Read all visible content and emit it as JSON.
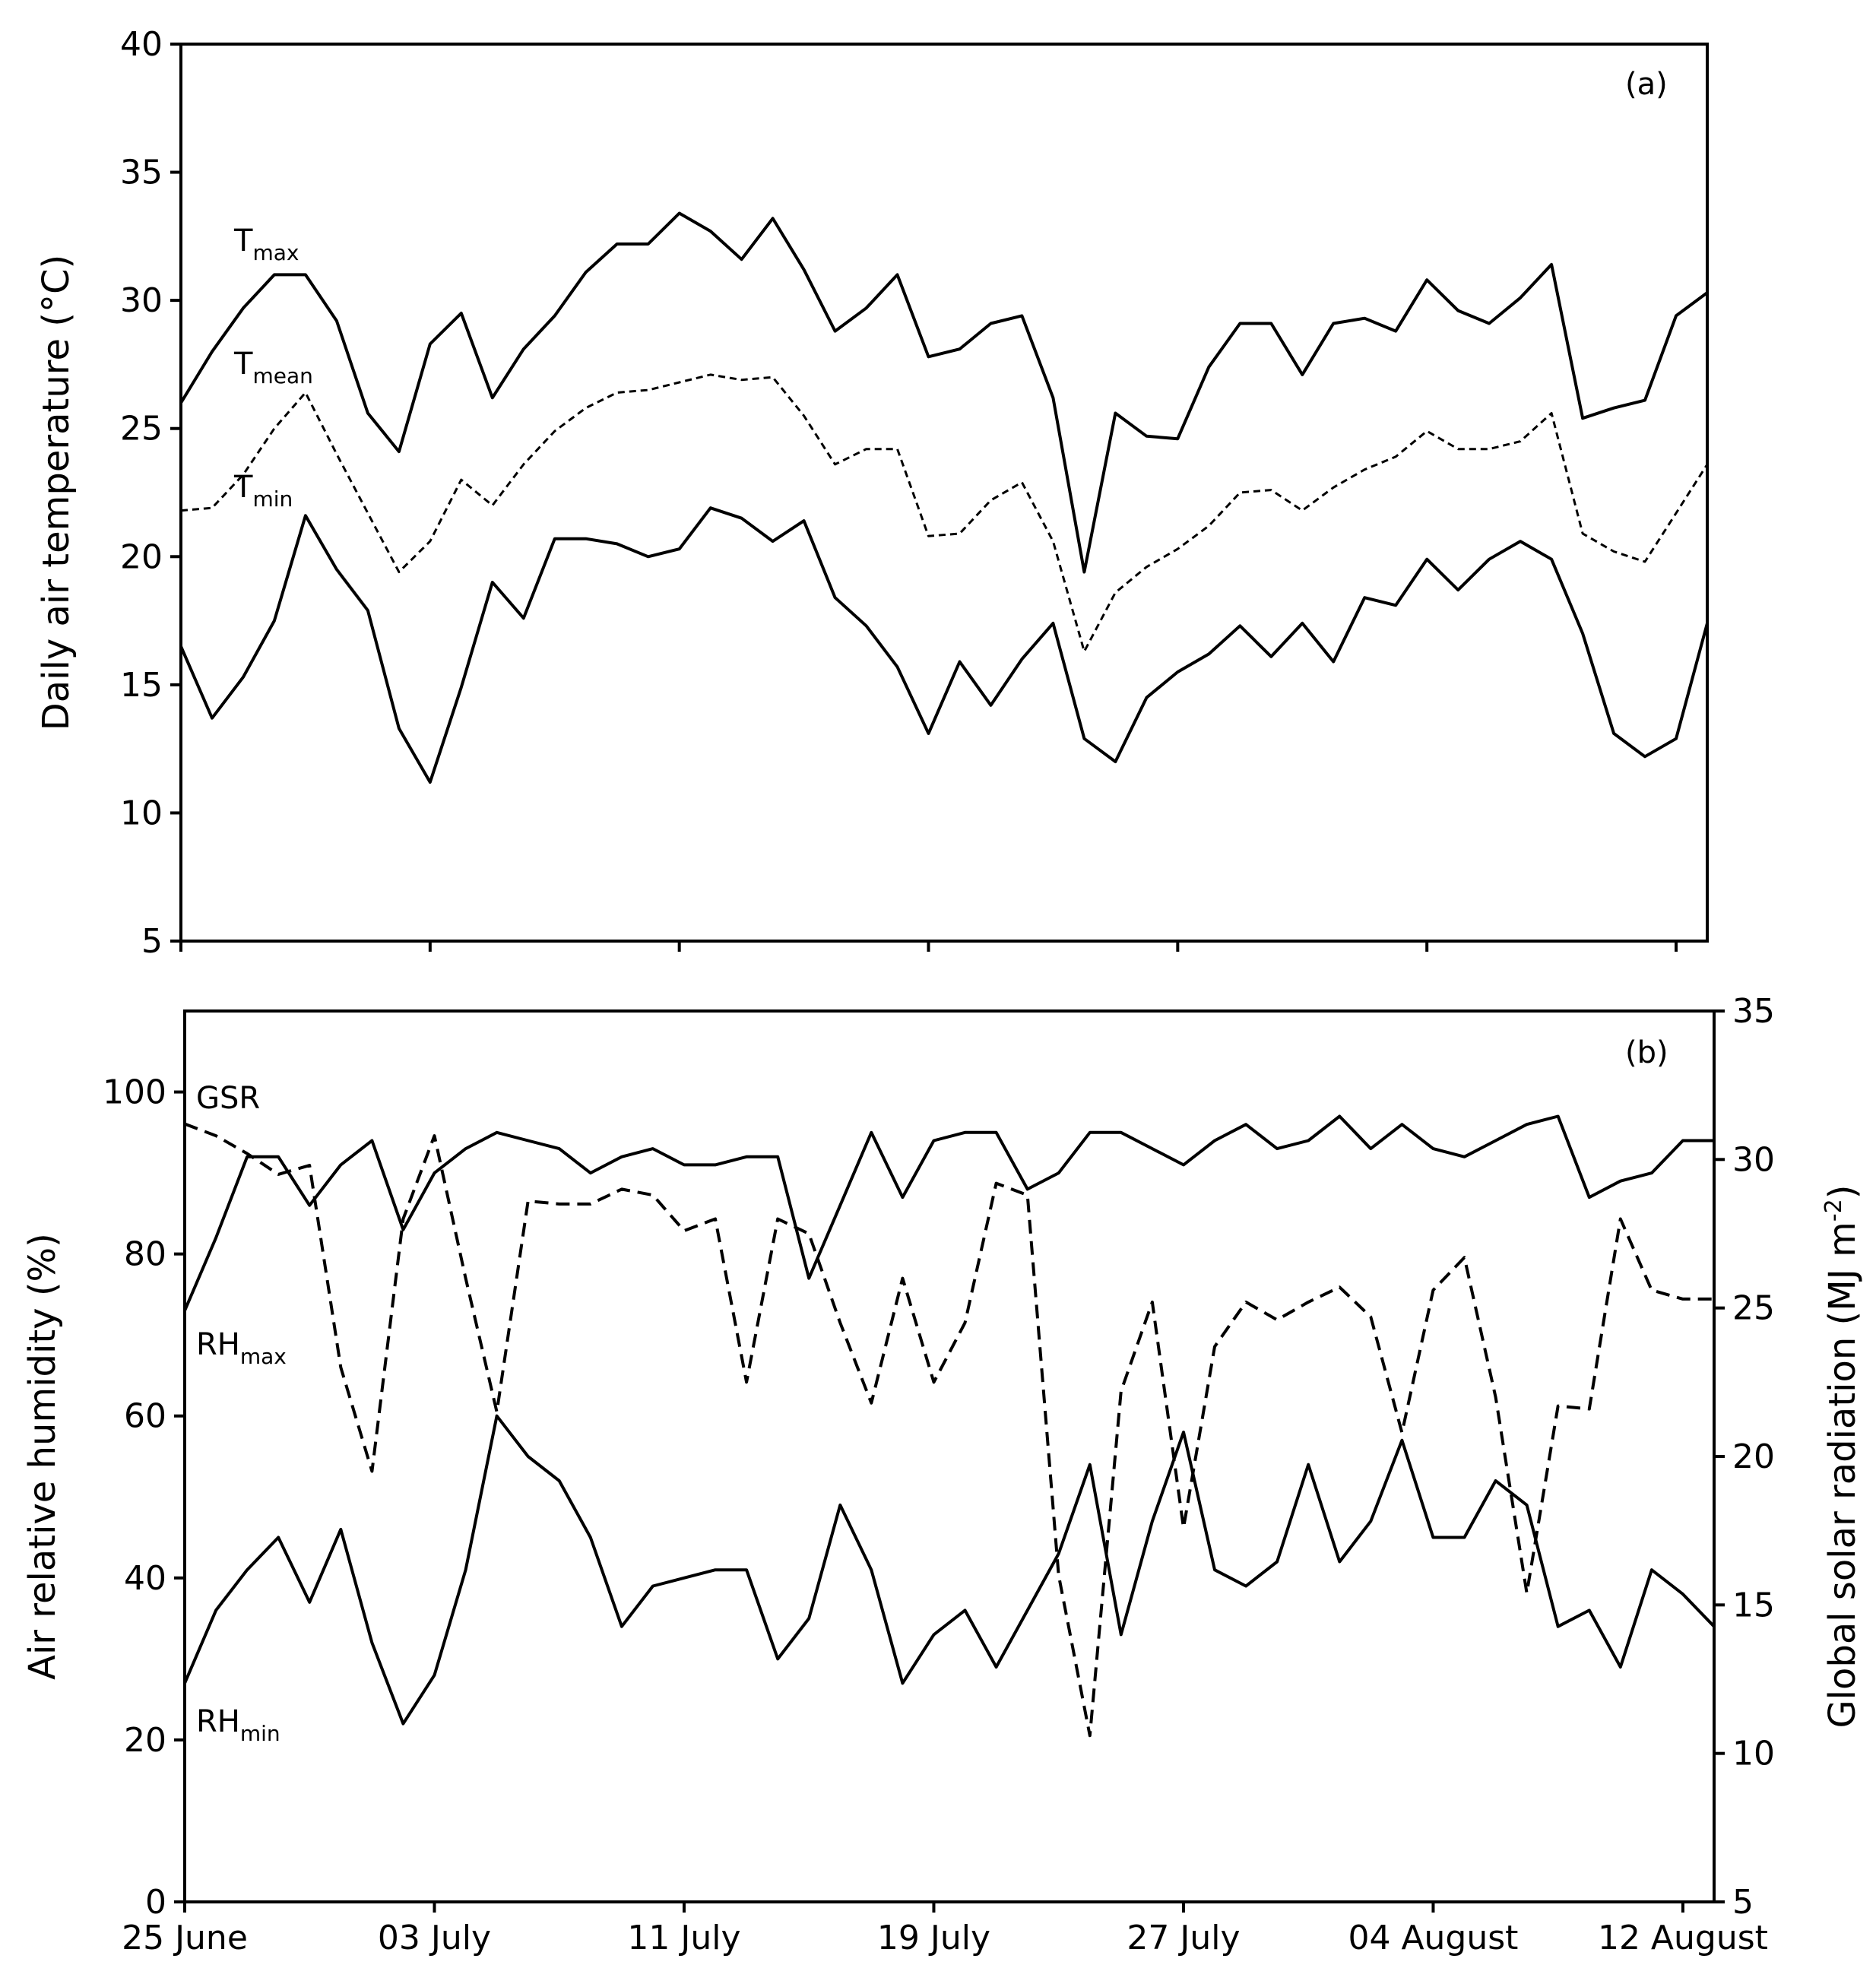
{
  "chart_data": [
    {
      "panel": "(a)",
      "type": "line",
      "ylabel": "Daily air temperature (°C)",
      "ylim": [
        5,
        40
      ],
      "yticks": [
        5,
        10,
        15,
        20,
        25,
        30,
        35,
        40
      ],
      "x_start": "25 June",
      "series": [
        {
          "name": "Tmax",
          "label_main": "T",
          "label_sub": "max",
          "style": "solid",
          "values": [
            26,
            28,
            29.7,
            31,
            31,
            29.2,
            25.6,
            24.1,
            28.3,
            29.5,
            26.2,
            28.1,
            29.4,
            31.1,
            32.2,
            32.2,
            33.4,
            32.7,
            31.6,
            33.2,
            31.2,
            28.8,
            29.7,
            31,
            27.8,
            28.1,
            29.1,
            29.4,
            26.2,
            19.4,
            25.6,
            24.7,
            24.6,
            27.4,
            29.1,
            29.1,
            27.1,
            29.1,
            29.3,
            28.8,
            30.8,
            29.6,
            29.1,
            30.1,
            31.4,
            25.4,
            25.8,
            26.1,
            29.4,
            30.3
          ]
        },
        {
          "name": "Tmean",
          "label_main": "T",
          "label_sub": "mean",
          "style": "dotted",
          "values": [
            21.8,
            21.9,
            23.2,
            25,
            26.4,
            24,
            21.7,
            19.4,
            20.6,
            23,
            22,
            23.6,
            24.9,
            25.8,
            26.4,
            26.5,
            26.8,
            27.1,
            26.9,
            27,
            25.5,
            23.6,
            24.2,
            24.2,
            20.8,
            20.9,
            22.2,
            22.9,
            20.6,
            16.3,
            18.6,
            19.6,
            20.3,
            21.2,
            22.5,
            22.6,
            21.8,
            22.7,
            23.4,
            23.9,
            24.9,
            24.2,
            24.2,
            24.5,
            25.6,
            20.9,
            20.2,
            19.8,
            21.7,
            23.6
          ]
        },
        {
          "name": "Tmin",
          "label_main": "T",
          "label_sub": "min",
          "style": "solid",
          "values": [
            16.5,
            13.7,
            15.3,
            17.5,
            21.6,
            19.5,
            17.9,
            13.3,
            11.2,
            14.9,
            19,
            17.6,
            20.7,
            20.7,
            20.5,
            20,
            20.3,
            21.9,
            21.5,
            20.6,
            21.4,
            18.4,
            17.3,
            15.7,
            13.1,
            15.9,
            14.2,
            16,
            17.4,
            12.9,
            12,
            14.5,
            15.5,
            16.2,
            17.3,
            16.1,
            17.4,
            15.9,
            18.4,
            18.1,
            19.9,
            18.7,
            19.9,
            20.6,
            19.9,
            17,
            13.1,
            12.2,
            12.9,
            17.4
          ]
        }
      ]
    },
    {
      "panel": "(b)",
      "type": "line",
      "ylabel": "Air relative humidity (%)",
      "ylabel_right": "Global solar radiation (MJ m",
      "ylabel_right_sup": "-2",
      "ylabel_right_end": ")",
      "ylim": [
        0,
        110
      ],
      "yticks": [
        0,
        20,
        40,
        60,
        80,
        100
      ],
      "ylim_right": [
        5,
        35
      ],
      "yticks_right": [
        5,
        10,
        15,
        20,
        25,
        30,
        35
      ],
      "xticks": [
        "25 June",
        "03 July",
        "11 July",
        "19 July",
        "27 July",
        "04 August",
        "12 August"
      ],
      "xtick_days": [
        0,
        8,
        16,
        24,
        32,
        40,
        48
      ],
      "series": [
        {
          "name": "GSR",
          "label_main": "GSR",
          "label_sub": "",
          "axis": "right",
          "style": "dashed",
          "values": [
            31.2,
            30.8,
            30.2,
            29.5,
            29.8,
            23,
            19.5,
            28,
            30.8,
            26,
            21.5,
            28.6,
            28.5,
            28.5,
            29,
            28.8,
            27.6,
            28,
            22.5,
            28,
            27.5,
            24.5,
            21.8,
            26,
            22.5,
            24.5,
            29.2,
            28.8,
            16,
            10.6,
            22.2,
            25.2,
            17.6,
            23.7,
            25.2,
            24.6,
            25.2,
            25.7,
            24.7,
            20.8,
            25.6,
            26.7,
            22,
            15.4,
            21.7,
            21.6,
            28,
            25.6,
            25.3,
            25.3
          ]
        },
        {
          "name": "RHmax",
          "label_main": "RH",
          "label_sub": "max",
          "style": "solid",
          "values": [
            73,
            82,
            92,
            92,
            86,
            91,
            94,
            83,
            90,
            93,
            95,
            94,
            93,
            90,
            92,
            93,
            91,
            91,
            92,
            92,
            77,
            86,
            95,
            87,
            94,
            95,
            95,
            88,
            90,
            95,
            95,
            93,
            91,
            94,
            96,
            93,
            94,
            97,
            93,
            96,
            93,
            92,
            94,
            96,
            97,
            87,
            89,
            90,
            94,
            94
          ]
        },
        {
          "name": "RHmin",
          "label_main": "RH",
          "label_sub": "min",
          "style": "solid",
          "values": [
            27,
            36,
            41,
            45,
            37,
            46,
            32,
            22,
            28,
            41,
            60,
            55,
            52,
            45,
            34,
            39,
            40,
            41,
            41,
            30,
            35,
            49,
            41,
            27,
            33,
            36,
            29,
            36,
            43,
            54,
            33,
            47,
            58,
            41,
            39,
            42,
            54,
            42,
            47,
            57,
            45,
            45,
            52,
            49,
            34,
            36,
            29,
            41,
            38,
            34
          ]
        }
      ]
    }
  ],
  "x_tick_labels": [
    "25 June",
    "03 July",
    "11 July",
    "19 July",
    "27 July",
    "04 August",
    "12 August"
  ]
}
